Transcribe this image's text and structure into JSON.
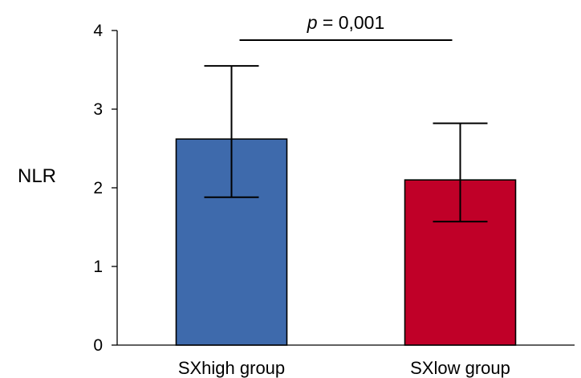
{
  "chart_data": {
    "type": "bar",
    "ylabel": "NLR",
    "xlabel": "",
    "ylim": [
      0,
      4
    ],
    "yticks": [
      0,
      1,
      2,
      3,
      4
    ],
    "grid": false,
    "categories": [
      "SXhigh group",
      "SXlow group"
    ],
    "values": [
      2.62,
      2.1
    ],
    "error_upper": [
      3.55,
      2.82
    ],
    "error_lower": [
      1.88,
      1.57
    ],
    "colors": [
      "#3e6aac",
      "#c00028"
    ],
    "annotation": {
      "p_symbol": "p",
      "p_text": " = 0,001",
      "between": [
        "SXhigh group",
        "SXlow group"
      ]
    }
  }
}
